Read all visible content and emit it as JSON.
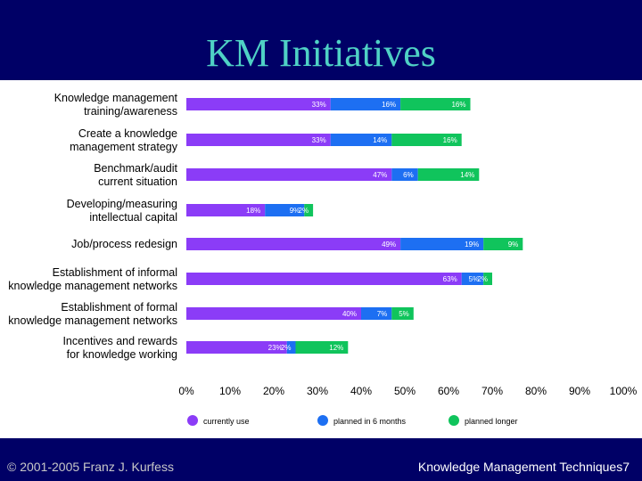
{
  "slide": {
    "title": "KM Initiatives",
    "footer_left": "© 2001-2005 Franz J. Kurfess",
    "footer_right": "Knowledge Management Techniques7"
  },
  "colors": {
    "background": "#000066",
    "title": "#4fd1c5",
    "currently_use": "#8b3cf7",
    "planned_6_months": "#1d6ff2",
    "planned_longer": "#10c45c"
  },
  "chart_data": {
    "type": "bar",
    "orientation": "horizontal",
    "stacked": true,
    "title": "",
    "xlabel": "",
    "ylabel": "",
    "xlim": [
      0,
      100
    ],
    "x_ticks": [
      "0%",
      "10%",
      "20%",
      "30%",
      "40%",
      "50%",
      "60%",
      "70%",
      "80%",
      "90%",
      "100%"
    ],
    "grid": false,
    "legend_position": "bottom",
    "categories": [
      [
        "Knowledge management",
        "training/awareness"
      ],
      [
        "Create a knowledge",
        "management strategy"
      ],
      [
        "Benchmark/audit",
        "current situation"
      ],
      [
        "Developing/measuring",
        "intellectual capital"
      ],
      [
        "Job/process redesign"
      ],
      [
        "Establishment of informal",
        "knowledge management networks"
      ],
      [
        "Establishment of formal",
        "knowledge management networks"
      ],
      [
        "Incentives and rewards",
        "for knowledge working"
      ]
    ],
    "series": [
      {
        "name": "currently use",
        "color": "#8b3cf7",
        "values": [
          33,
          33,
          47,
          18,
          49,
          63,
          40,
          23
        ],
        "labels": [
          "33%",
          "33%",
          "47%",
          "18%",
          "49%",
          "63%",
          "40%",
          "23%"
        ]
      },
      {
        "name": "planned in 6 months",
        "color": "#1d6ff2",
        "values": [
          16,
          14,
          6,
          9,
          19,
          5,
          7,
          2
        ],
        "labels": [
          "16%",
          "14%",
          "6%",
          "9%",
          "19%",
          "5%",
          "7%",
          "2%"
        ]
      },
      {
        "name": "planned longer",
        "color": "#10c45c",
        "values": [
          16,
          16,
          14,
          2,
          9,
          2,
          5,
          12
        ],
        "labels": [
          "16%",
          "16%",
          "14%",
          "2%",
          "9%",
          "2%",
          "5%",
          "12%"
        ]
      }
    ]
  }
}
